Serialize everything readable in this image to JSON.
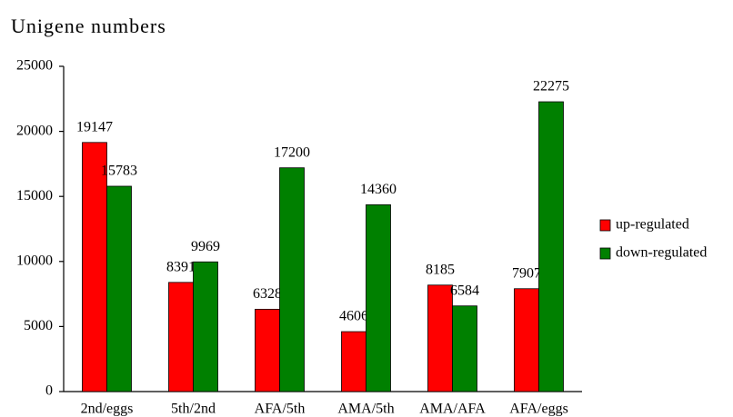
{
  "chart_data": {
    "type": "bar",
    "title": "Unigene numbers",
    "categories": [
      "2nd/eggs",
      "5th/2nd",
      "AFA/5th",
      "AMA/5th",
      "AMA/AFA",
      "AFA/eggs"
    ],
    "series": [
      {
        "name": "up-regulated",
        "color": "#ff0000",
        "values": [
          19147,
          8391,
          6328,
          4606,
          8185,
          7907
        ]
      },
      {
        "name": "down-regulated",
        "color": "#008000",
        "values": [
          15783,
          9969,
          17200,
          14360,
          6584,
          22275
        ]
      }
    ],
    "ylim": [
      0,
      25000
    ],
    "yticks": [
      0,
      5000,
      10000,
      15000,
      20000,
      25000
    ],
    "grid": false,
    "legend": "right"
  }
}
